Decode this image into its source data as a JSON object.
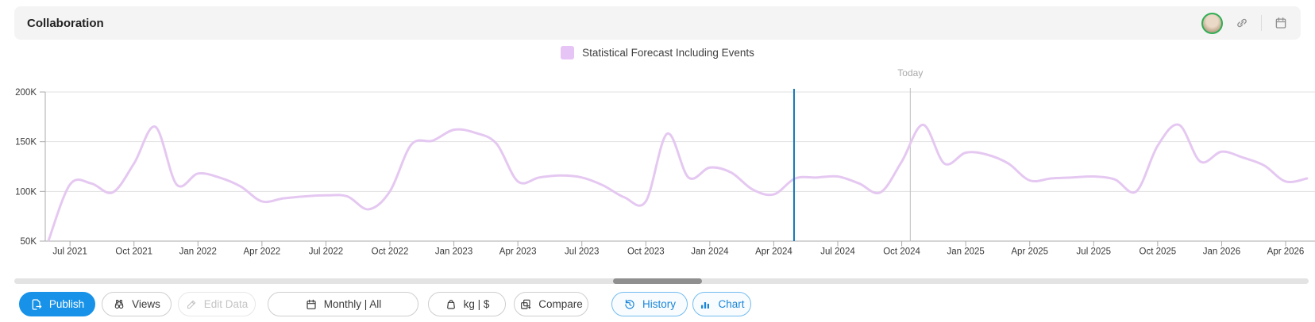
{
  "header": {
    "title": "Collaboration",
    "icons": [
      "avatar",
      "link",
      "calendar"
    ]
  },
  "legend": {
    "label": "Statistical Forecast Including Events",
    "color": "#e7c4f6"
  },
  "chart_data": {
    "type": "line",
    "title": "",
    "xlabel": "",
    "ylabel": "",
    "values_unit": "K",
    "ylim": [
      50,
      200
    ],
    "grid": true,
    "legend_position": "top",
    "x": [
      "Jun 2021",
      "Jul 2021",
      "Aug 2021",
      "Sep 2021",
      "Oct 2021",
      "Nov 2021",
      "Dec 2021",
      "Jan 2022",
      "Feb 2022",
      "Mar 2022",
      "Apr 2022",
      "May 2022",
      "Jun 2022",
      "Jul 2022",
      "Aug 2022",
      "Sep 2022",
      "Oct 2022",
      "Nov 2022",
      "Dec 2022",
      "Jan 2023",
      "Feb 2023",
      "Mar 2023",
      "Apr 2023",
      "May 2023",
      "Jun 2023",
      "Jul 2023",
      "Aug 2023",
      "Sep 2023",
      "Oct 2023",
      "Nov 2023",
      "Dec 2023",
      "Jan 2024",
      "Feb 2024",
      "Mar 2024",
      "Apr 2024",
      "May 2024",
      "Jun 2024",
      "Jul 2024",
      "Aug 2024",
      "Sep 2024",
      "Oct 2024",
      "Nov 2024",
      "Dec 2024",
      "Jan 2025",
      "Feb 2025",
      "Mar 2025",
      "Apr 2025",
      "May 2025",
      "Jun 2025",
      "Jul 2025",
      "Aug 2025",
      "Sep 2025",
      "Oct 2025",
      "Nov 2025",
      "Dec 2025",
      "Jan 2026",
      "Feb 2026",
      "Mar 2026",
      "Apr 2026",
      "May 2026"
    ],
    "series": [
      {
        "name": "Statistical Forecast Including Events",
        "color": "#e5c8f1",
        "values": [
          51,
          107,
          108,
          99,
          128,
          165,
          107,
          118,
          114,
          105,
          90,
          93,
          95,
          96,
          95,
          82,
          100,
          147,
          151,
          162,
          159,
          148,
          110,
          114,
          116,
          114,
          106,
          94,
          90,
          158,
          114,
          124,
          119,
          102,
          97,
          113,
          114,
          115,
          108,
          99,
          130,
          167,
          128,
          139,
          137,
          128,
          111,
          113,
          114,
          115,
          112,
          100,
          146,
          167,
          130,
          140,
          134,
          126,
          110,
          113
        ]
      }
    ],
    "y_ticks": {
      "labels": [
        "200K",
        "150K",
        "100K",
        "50K"
      ],
      "values": [
        200,
        150,
        100,
        50
      ]
    },
    "x_tick_labels": [
      "Jul 2021",
      "Oct 2021",
      "Jan 2022",
      "Apr 2022",
      "Jul 2022",
      "Oct 2022",
      "Jan 2023",
      "Apr 2023",
      "Jul 2023",
      "Oct 2023",
      "Jan 2024",
      "Apr 2024",
      "Jul 2024",
      "Oct 2024",
      "Jan 2025",
      "Apr 2025",
      "Jul 2025",
      "Oct 2025",
      "Jan 2026",
      "Apr 2026"
    ],
    "annotations": {
      "today_label": "Today",
      "today_month_index": 40.4,
      "today_line_color": "#bdbdbd",
      "selected_month_index": 34.95,
      "selected_line_color": "#1477b4"
    }
  },
  "scrollbar": {
    "orientation": "horizontal"
  },
  "toolbar": {
    "buttons": [
      {
        "id": "publish",
        "label": "Publish",
        "state": "primary"
      },
      {
        "id": "views",
        "label": "Views",
        "state": "default"
      },
      {
        "id": "edit",
        "label": "Edit Data",
        "state": "disabled"
      },
      {
        "id": "period",
        "label": "Monthly  |  All",
        "state": "default"
      },
      {
        "id": "units",
        "label": "kg  |  $",
        "state": "default"
      },
      {
        "id": "compare",
        "label": "Compare",
        "state": "default"
      },
      {
        "id": "history",
        "label": "History",
        "state": "active"
      },
      {
        "id": "chart",
        "label": "Chart",
        "state": "active"
      }
    ]
  }
}
